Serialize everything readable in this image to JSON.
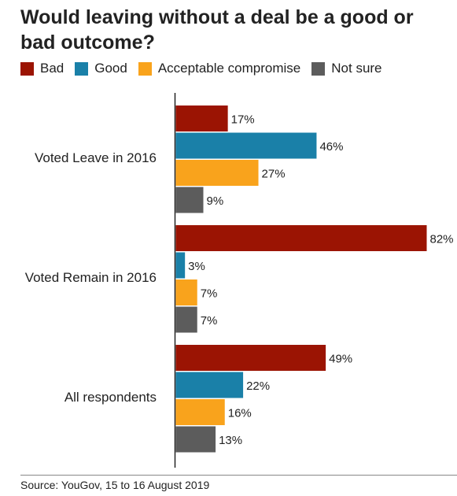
{
  "title": "Would leaving without a deal be a good or bad outcome?",
  "source": "Source: YouGov, 15 to 16 August 2019",
  "colors": {
    "Bad": "#9b1403",
    "Good": "#1a80a8",
    "Acceptable compromise": "#f9a31c",
    "Not sure": "#5c5c5c"
  },
  "chart_data": {
    "type": "bar",
    "orientation": "horizontal",
    "title": "Would leaving without a deal be a good or bad outcome?",
    "categories": [
      "Voted Leave in 2016",
      "Voted Remain in 2016",
      "All respondents"
    ],
    "series": [
      {
        "name": "Bad",
        "values": [
          17,
          82,
          49
        ]
      },
      {
        "name": "Good",
        "values": [
          46,
          3,
          22
        ]
      },
      {
        "name": "Acceptable compromise",
        "values": [
          27,
          7,
          16
        ]
      },
      {
        "name": "Not sure",
        "values": [
          9,
          7,
          13
        ]
      }
    ],
    "value_suffix": "%",
    "legend_position": "top",
    "grid": false
  }
}
